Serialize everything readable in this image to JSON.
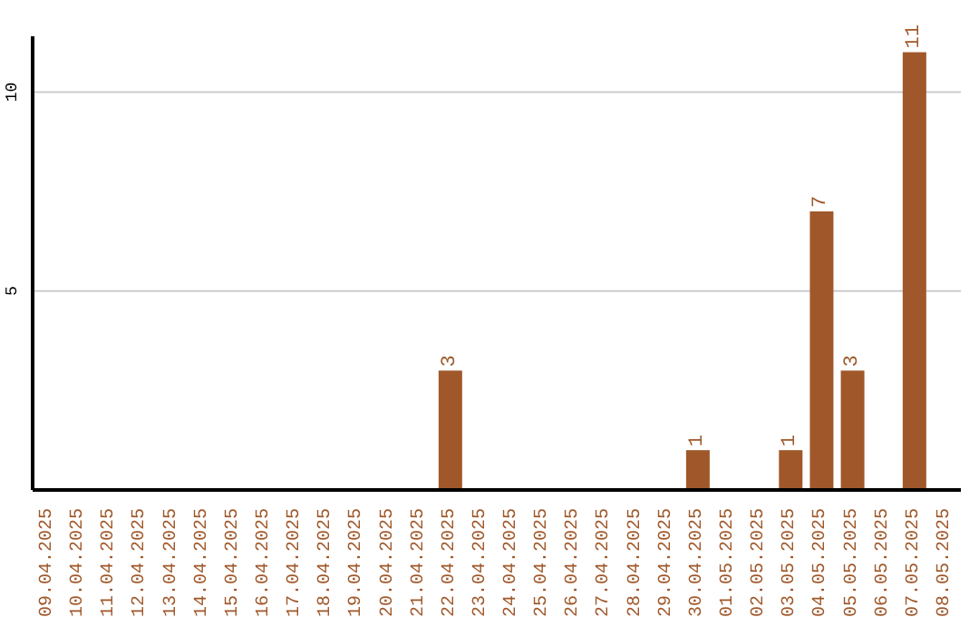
{
  "chart_data": {
    "type": "bar",
    "categories": [
      "09.04.2025",
      "10.04.2025",
      "11.04.2025",
      "12.04.2025",
      "13.04.2025",
      "14.04.2025",
      "15.04.2025",
      "16.04.2025",
      "17.04.2025",
      "18.04.2025",
      "19.04.2025",
      "20.04.2025",
      "21.04.2025",
      "22.04.2025",
      "23.04.2025",
      "24.04.2025",
      "25.04.2025",
      "26.04.2025",
      "27.04.2025",
      "28.04.2025",
      "29.04.2025",
      "30.04.2025",
      "01.05.2025",
      "02.05.2025",
      "03.05.2025",
      "04.05.2025",
      "05.05.2025",
      "06.05.2025",
      "07.05.2025",
      "08.05.2025"
    ],
    "values": [
      0,
      0,
      0,
      0,
      0,
      0,
      0,
      0,
      0,
      0,
      0,
      0,
      0,
      3,
      0,
      0,
      0,
      0,
      0,
      0,
      0,
      1,
      0,
      0,
      1,
      7,
      3,
      0,
      11,
      0
    ],
    "value_labels": [
      null,
      null,
      null,
      null,
      null,
      null,
      null,
      null,
      null,
      null,
      null,
      null,
      null,
      "3",
      null,
      null,
      null,
      null,
      null,
      null,
      null,
      "1",
      null,
      null,
      "1",
      "7",
      "3",
      null,
      "11",
      null
    ],
    "color": "#a0582a",
    "ylim": [
      0,
      11.4
    ],
    "yticks": [
      5,
      10
    ],
    "grid": "y"
  }
}
